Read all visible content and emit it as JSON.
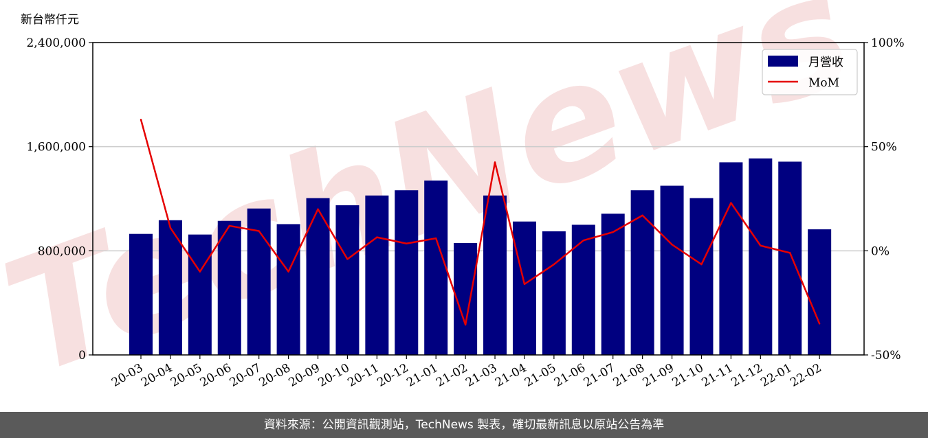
{
  "unit_label": "新台幣仟元",
  "footer_text": "資料來源：公開資訊觀測站，TechNews 製表，確切最新訊息以原站公告為準",
  "watermark_text": "TechNews",
  "colors": {
    "bar": "#000080",
    "line": "#e50000",
    "watermark": "#f2c8c8",
    "grid": "#cccccc"
  },
  "chart_data": {
    "type": "bar",
    "categories": [
      "20-03",
      "20-04",
      "20-05",
      "20-06",
      "20-07",
      "20-08",
      "20-09",
      "20-10",
      "20-11",
      "20-12",
      "21-01",
      "21-02",
      "21-03",
      "21-04",
      "21-05",
      "21-06",
      "21-07",
      "21-08",
      "21-09",
      "21-10",
      "21-11",
      "21-12",
      "22-01",
      "22-02"
    ],
    "series": [
      {
        "name": "月營收",
        "type": "bar",
        "axis": "left",
        "values": [
          930000,
          1035000,
          925000,
          1030000,
          1125000,
          1005000,
          1205000,
          1150000,
          1225000,
          1265000,
          1340000,
          860000,
          1225000,
          1025000,
          950000,
          1000000,
          1085000,
          1265000,
          1300000,
          1205000,
          1480000,
          1510000,
          1485000,
          965000
        ]
      },
      {
        "name": "MoM",
        "type": "line",
        "axis": "right",
        "values": [
          63,
          11,
          -10,
          12,
          9.5,
          -10,
          20,
          -4,
          6.5,
          3.5,
          6,
          -35.5,
          42.5,
          -16,
          -6.5,
          5,
          9,
          17,
          3,
          -6.5,
          23,
          2.5,
          -1,
          -35
        ]
      }
    ],
    "ylim_left": [
      0,
      2400000
    ],
    "yticks_left": [
      "0",
      "800,000",
      "1,600,000",
      "2,400,000"
    ],
    "ylim_right": [
      -50,
      100
    ],
    "yticks_right": [
      "-50%",
      "0%",
      "50%",
      "100%"
    ],
    "grid": "horizontal",
    "legend_position": "top-right"
  }
}
